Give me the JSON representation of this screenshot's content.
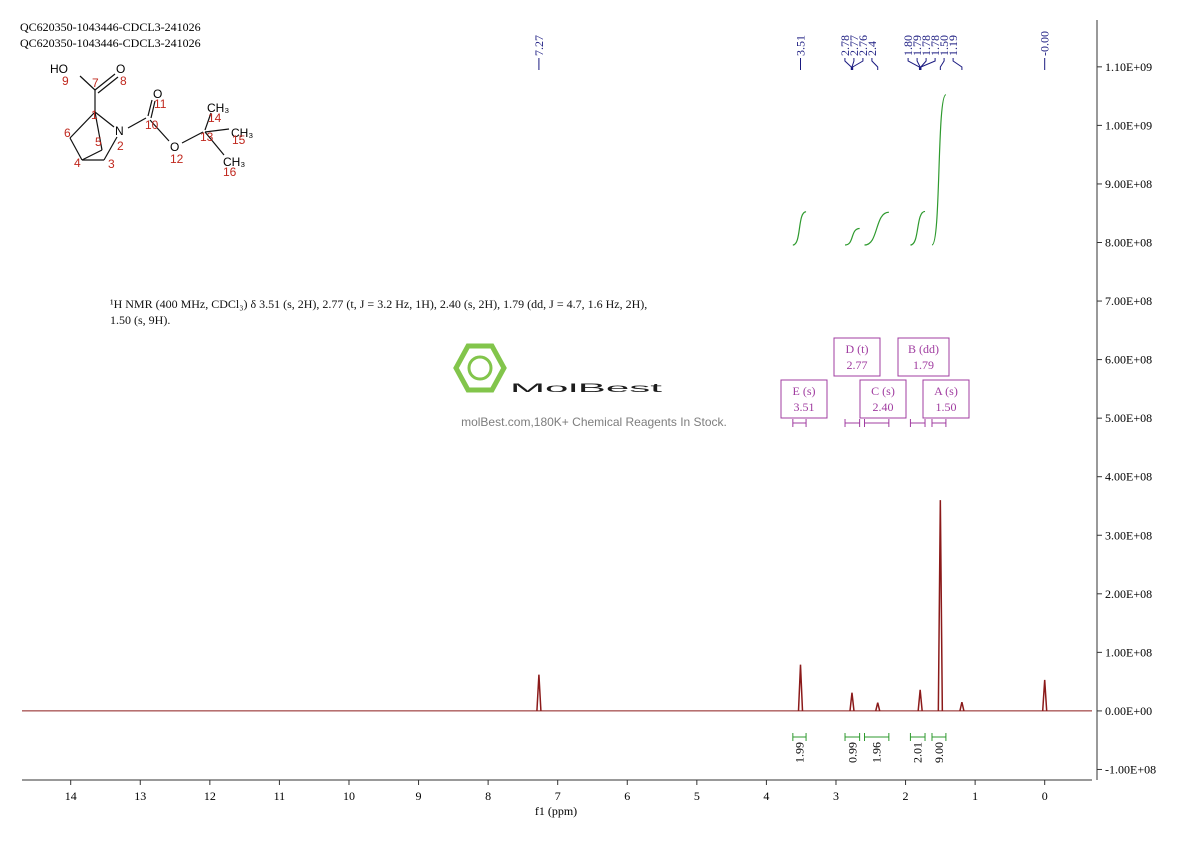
{
  "chart_data": {
    "type": "nmr",
    "title_lines": [
      "QC620350-1043446-CDCL3-241026",
      "QC620350-1043446-CDCL3-241026"
    ],
    "xlabel": "f1 (ppm)",
    "xlim": [
      14.7,
      -0.68
    ],
    "xticks": [
      14,
      13,
      12,
      11,
      10,
      9,
      8,
      7,
      6,
      5,
      4,
      3,
      2,
      1,
      0
    ],
    "ylim": [
      -118000000,
      1180000000
    ],
    "yticks": [
      {
        "value": 1100000000,
        "label": "1.10E+09"
      },
      {
        "value": 1000000000,
        "label": "1.00E+09"
      },
      {
        "value": 900000000,
        "label": "9.00E+08"
      },
      {
        "value": 800000000,
        "label": "8.00E+08"
      },
      {
        "value": 700000000,
        "label": "7.00E+08"
      },
      {
        "value": 600000000,
        "label": "6.00E+08"
      },
      {
        "value": 500000000,
        "label": "5.00E+08"
      },
      {
        "value": 400000000,
        "label": "4.00E+08"
      },
      {
        "value": 300000000,
        "label": "3.00E+08"
      },
      {
        "value": 200000000,
        "label": "2.00E+08"
      },
      {
        "value": 100000000,
        "label": "1.00E+08"
      },
      {
        "value": 0,
        "label": "0.00E+00"
      },
      {
        "value": -100000000,
        "label": "-1.00E+08"
      }
    ],
    "spectrum": {
      "color": "#8b1a1a",
      "x": [
        7.27,
        3.51,
        2.77,
        2.4,
        1.79,
        1.5,
        1.19,
        0
      ],
      "values": [
        62000000,
        79000000,
        31000000,
        14000000,
        36000000,
        360000000,
        15000000,
        53000000
      ]
    },
    "peak_picks": [
      7.27,
      3.51,
      2.78,
      2.77,
      2.76,
      2.4,
      {
        "value": 1.8,
        "label": "1.80"
      },
      1.79,
      1.78,
      1.78,
      {
        "value": 1.5,
        "label": "1.50"
      },
      1.19,
      {
        "value": 0,
        "label": "-0.00"
      }
    ],
    "integrals": {
      "color": "#2e9a2e",
      "ranges": [
        [
          3.62,
          3.43
        ],
        [
          2.87,
          2.66
        ],
        [
          2.59,
          2.24
        ],
        [
          1.93,
          1.72
        ],
        [
          1.62,
          1.42
        ]
      ],
      "values": [
        1.99,
        0.99,
        1.96,
        2.01,
        9
      ],
      "value_labels": [
        "1.99",
        "0.99",
        "1.96",
        "2.01",
        "9.00"
      ]
    },
    "multiplets": [
      {
        "label": "E (s)",
        "shift": 3.51
      },
      {
        "label": "D (t)",
        "shift": 2.77
      },
      {
        "label": "C (s)",
        "shift": 2.4,
        "shift_label": "2.40"
      },
      {
        "label": "B (dd)",
        "shift": 1.79
      },
      {
        "label": "A (s)",
        "shift": 1.5,
        "shift_label": "1.50"
      }
    ],
    "description": "¹H NMR (400 MHz, CDCl₃) δ 3.51 (s, 2H), 2.77 (t, J = 3.2 Hz, 1H), 2.40 (s, 2H), 1.79 (dd, J = 4.7, 1.6 Hz, 2H), 1.50 (s, 9H).",
    "watermark": {
      "brand": "MolBest",
      "tagline": "molBest.com,180K+ Chemical Reagents In Stock."
    },
    "structure": {
      "labels": [
        "HO",
        "O",
        "O",
        "N",
        "O",
        "CH₃",
        "CH₃",
        "CH₃"
      ],
      "numbers": [
        9,
        7,
        8,
        11,
        10,
        1,
        6,
        5,
        2,
        12,
        13,
        14,
        15,
        16,
        4,
        3
      ]
    }
  }
}
